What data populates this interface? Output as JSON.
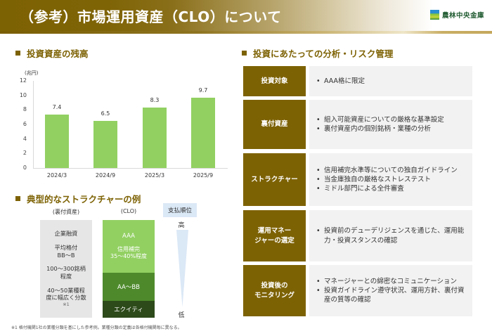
{
  "header": {
    "title": "（参考）市場運用資産（CLO）について",
    "logo_text": "農林中央金庫"
  },
  "sections": {
    "balance_title": "投資資産の残高",
    "structure_title": "典型的なストラクチャーの例",
    "risk_title": "投資にあたっての分析・リスク管理"
  },
  "chart_data": {
    "type": "bar",
    "title": "投資資産の残高",
    "ylabel": "(兆円)",
    "xlabel": "",
    "categories": [
      "2024/3",
      "2024/9",
      "2025/3",
      "2025/9"
    ],
    "values": [
      7.4,
      6.5,
      8.3,
      9.7
    ],
    "value_labels": [
      "7.4",
      "6.5",
      "8.3",
      "9.7"
    ],
    "ylim": [
      0,
      12
    ],
    "yticks": [
      "12",
      "10",
      "8",
      "6",
      "4",
      "2",
      "0"
    ],
    "grid": false,
    "legend": "none",
    "bar_color": "#92d062"
  },
  "structure": {
    "col_underlying": "(裏付資産)",
    "col_clo": "(CLO)",
    "underlying_items": [
      "企業融資",
      "平均格付\nBB～B",
      "100～300銘柄\n程度",
      "40～50業種程\n度に幅広く分散"
    ],
    "underlying_note": "※1",
    "clo_aaa": "AAA",
    "clo_aaa_note": "信用補完\n35～40%程度",
    "clo_mezz": "AA～BB",
    "clo_equity": "エクイティ",
    "priority_label": "支払順位",
    "priority_high": "高",
    "priority_low": "低"
  },
  "footnote": "※1 格付機関1社の業種分類を基にした参考例。業種分類の定義は各格付機関毎に異なる。",
  "risk_table": [
    {
      "key": "投資対象",
      "bullets": [
        "AAA格に限定"
      ]
    },
    {
      "key": "裏付資産",
      "bullets": [
        "組入可能資産についての厳格な基準設定",
        "裏付資産内の個別銘柄・業種の分析"
      ]
    },
    {
      "key": "ストラクチャー",
      "bullets": [
        "信用補完水準等についての独自ガイドライン",
        "当金庫独自の厳格なストレステスト",
        "ミドル部門による全件審査"
      ]
    },
    {
      "key": "運用マネー\nジャーの選定",
      "bullets": [
        "投資前のデューデリジェンスを通じた、運用能力・投資スタンスの確認"
      ]
    },
    {
      "key": "投資後の\nモニタリング",
      "bullets": [
        "マネージャーとの綿密なコミュニケーション",
        "投資ガイドライン遵守状況、運用方針、裏付資産の質等の確認"
      ]
    }
  ],
  "colors": {
    "brand_gold": "#7d6204",
    "bar_green": "#92d062",
    "clo_mid_green": "#4e8a2c",
    "clo_dark_green": "#2d4a1a",
    "grey_box": "#e7e6e6",
    "priority_blue": "#dbe8f6",
    "row_bg": "#f2f2f2"
  }
}
